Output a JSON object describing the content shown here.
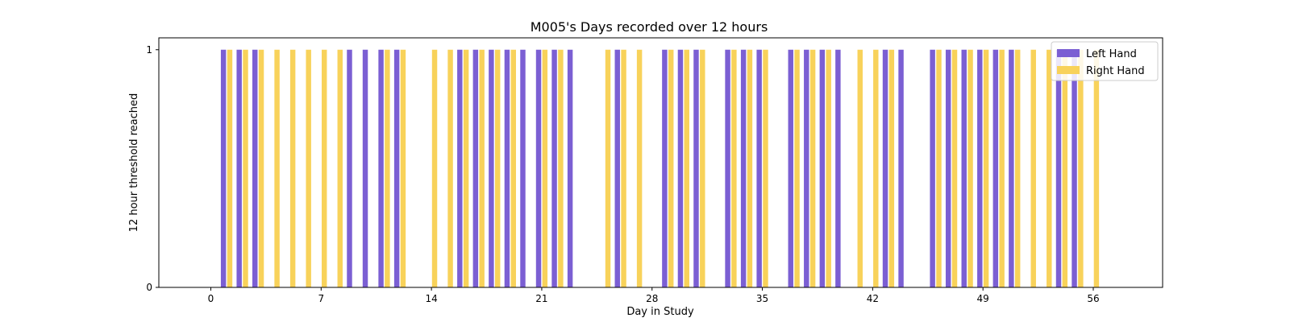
{
  "chart_data": {
    "type": "bar",
    "title": "M005's Days recorded over 12 hours",
    "xlabel": "Day in Study",
    "ylabel": "12 hour threshold reached",
    "xlim": [
      -3.3,
      60.4
    ],
    "ylim": [
      0,
      1.05
    ],
    "xticks": [
      0,
      7,
      14,
      21,
      28,
      35,
      42,
      49,
      56
    ],
    "yticks": [
      0,
      1
    ],
    "legend_position": "top-right",
    "series": [
      {
        "name": "Left Hand",
        "color": "#7b5fd3",
        "offset": -0.2,
        "x": [
          1,
          2,
          3,
          9,
          10,
          11,
          12,
          16,
          17,
          18,
          19,
          20,
          21,
          22,
          23,
          26,
          29,
          30,
          31,
          33,
          34,
          35,
          37,
          38,
          39,
          40,
          43,
          44,
          46,
          47,
          48,
          49,
          50,
          51,
          54,
          55
        ],
        "values": [
          1,
          1,
          1,
          1,
          1,
          1,
          1,
          1,
          1,
          1,
          1,
          1,
          1,
          1,
          1,
          1,
          1,
          1,
          1,
          1,
          1,
          1,
          1,
          1,
          1,
          1,
          1,
          1,
          1,
          1,
          1,
          1,
          1,
          1,
          1,
          1
        ]
      },
      {
        "name": "Right Hand",
        "color": "#f8d25a",
        "offset": 0.2,
        "x": [
          1,
          2,
          3,
          4,
          5,
          6,
          7,
          8,
          11,
          12,
          14,
          15,
          16,
          17,
          18,
          19,
          21,
          22,
          25,
          26,
          27,
          29,
          30,
          31,
          33,
          34,
          35,
          37,
          38,
          39,
          41,
          42,
          43,
          46,
          47,
          48,
          49,
          50,
          51,
          52,
          53,
          54,
          55,
          56
        ],
        "values": [
          1,
          1,
          1,
          1,
          1,
          1,
          1,
          1,
          1,
          1,
          1,
          1,
          1,
          1,
          1,
          1,
          1,
          1,
          1,
          1,
          1,
          1,
          1,
          1,
          1,
          1,
          1,
          1,
          1,
          1,
          1,
          1,
          1,
          1,
          1,
          1,
          1,
          1,
          1,
          1,
          1,
          1,
          1,
          1
        ]
      }
    ]
  }
}
